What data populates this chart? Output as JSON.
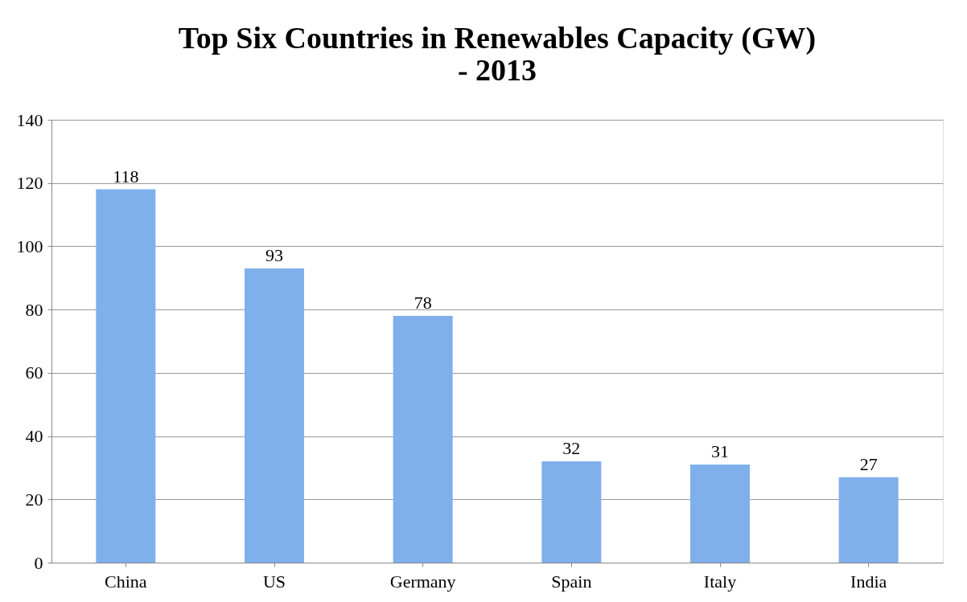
{
  "chart_data": {
    "type": "bar",
    "title": "Top  Six Countries in Renewables Capacity (GW)\n- 2013",
    "categories": [
      "China",
      "US",
      "Germany",
      "Spain",
      "Italy",
      "India"
    ],
    "values": [
      118,
      93,
      78,
      32,
      31,
      27
    ],
    "color": "#7fb0ec",
    "ylim": [
      0,
      140
    ],
    "yticks": [
      0,
      20,
      40,
      60,
      80,
      100,
      120,
      140
    ],
    "grid": "y",
    "data_labels": true
  }
}
